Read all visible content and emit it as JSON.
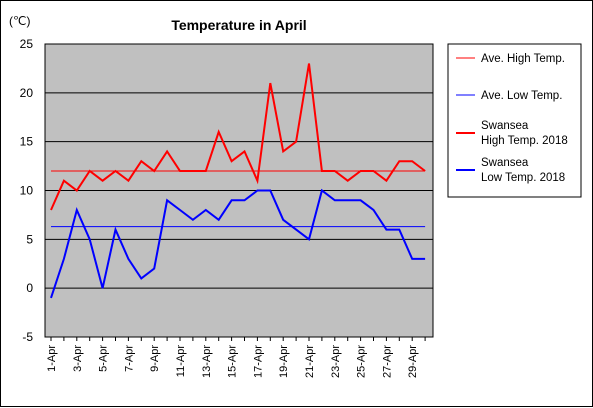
{
  "chart_data": {
    "type": "line",
    "title": "Temperature in April",
    "ylabel": "(℃)",
    "xlabel": "",
    "ylim": [
      -5,
      25
    ],
    "yticks": [
      -5,
      0,
      5,
      10,
      15,
      20,
      25
    ],
    "grid": true,
    "legend_position": "right",
    "background_color": "#c0c0c0",
    "categories": [
      "1-Apr",
      "2-Apr",
      "3-Apr",
      "4-Apr",
      "5-Apr",
      "6-Apr",
      "7-Apr",
      "8-Apr",
      "9-Apr",
      "10-Apr",
      "11-Apr",
      "12-Apr",
      "13-Apr",
      "14-Apr",
      "15-Apr",
      "16-Apr",
      "17-Apr",
      "18-Apr",
      "19-Apr",
      "20-Apr",
      "21-Apr",
      "22-Apr",
      "23-Apr",
      "24-Apr",
      "25-Apr",
      "26-Apr",
      "27-Apr",
      "28-Apr",
      "29-Apr",
      "30-Apr"
    ],
    "tick_labels": [
      "1-Apr",
      "3-Apr",
      "5-Apr",
      "7-Apr",
      "9-Apr",
      "11-Apr",
      "13-Apr",
      "15-Apr",
      "17-Apr",
      "19-Apr",
      "21-Apr",
      "23-Apr",
      "25-Apr",
      "27-Apr",
      "29-Apr"
    ],
    "series": [
      {
        "name": "Ave. High Temp.",
        "color": "#ff0000",
        "style": "thin",
        "values": [
          12,
          12,
          12,
          12,
          12,
          12,
          12,
          12,
          12,
          12,
          12,
          12,
          12,
          12,
          12,
          12,
          12,
          12,
          12,
          12,
          12,
          12,
          12,
          12,
          12,
          12,
          12,
          12,
          12,
          12
        ]
      },
      {
        "name": "Ave. Low Temp.",
        "color": "#0000ff",
        "style": "thin",
        "values": [
          6.3,
          6.3,
          6.3,
          6.3,
          6.3,
          6.3,
          6.3,
          6.3,
          6.3,
          6.3,
          6.3,
          6.3,
          6.3,
          6.3,
          6.3,
          6.3,
          6.3,
          6.3,
          6.3,
          6.3,
          6.3,
          6.3,
          6.3,
          6.3,
          6.3,
          6.3,
          6.3,
          6.3,
          6.3,
          6.3
        ]
      },
      {
        "name": "Swansea\nHigh Temp. 2018",
        "color": "#ff0000",
        "style": "thick",
        "values": [
          8,
          11,
          10,
          12,
          11,
          12,
          11,
          13,
          12,
          14,
          12,
          12,
          12,
          16,
          13,
          14,
          11,
          21,
          14,
          15,
          23,
          12,
          12,
          11,
          12,
          12,
          11,
          13,
          13,
          12
        ]
      },
      {
        "name": "Swansea\nLow Temp. 2018",
        "color": "#0000ff",
        "style": "thick",
        "values": [
          -1,
          3,
          8,
          5,
          0,
          6,
          3,
          1,
          2,
          9,
          8,
          7,
          8,
          7,
          9,
          9,
          10,
          10,
          7,
          6,
          5,
          10,
          9,
          9,
          9,
          8,
          6,
          6,
          3,
          3
        ]
      }
    ]
  }
}
